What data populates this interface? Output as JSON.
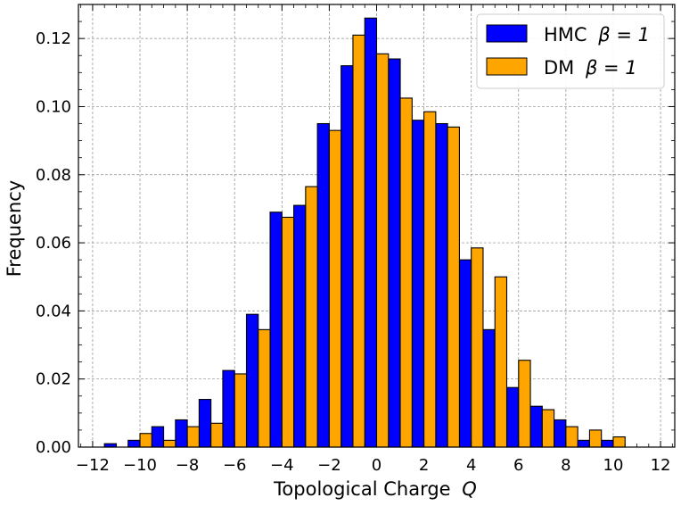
{
  "chart_data": {
    "type": "bar",
    "xlabel": "Topological Charge",
    "xlabel_var": "Q",
    "ylabel": "Frequency",
    "xlim": [
      -12.6,
      12.6
    ],
    "ylim": [
      0.0,
      0.13
    ],
    "xticks": [
      -12,
      -10,
      -8,
      -6,
      -4,
      -2,
      0,
      2,
      4,
      6,
      8,
      10,
      12
    ],
    "xtick_labels": [
      "−12",
      "−10",
      "−8",
      "−6",
      "−4",
      "−2",
      "0",
      "2",
      "4",
      "6",
      "8",
      "10",
      "12"
    ],
    "yticks": [
      0.0,
      0.02,
      0.04,
      0.06,
      0.08,
      0.1,
      0.12
    ],
    "ytick_labels": [
      "0.00",
      "0.02",
      "0.04",
      "0.06",
      "0.08",
      "0.10",
      "0.12"
    ],
    "grid": true,
    "legend_position": "top-right",
    "categories": [
      -11,
      -10,
      -9,
      -8,
      -7,
      -6,
      -5,
      -4,
      -3,
      -2,
      -1,
      0,
      1,
      2,
      3,
      4,
      5,
      6,
      7,
      8,
      9,
      10
    ],
    "series": [
      {
        "name": "HMC",
        "legend_suffix": "β = 1",
        "color": "#0000ff",
        "values": [
          0.001,
          0.002,
          0.006,
          0.008,
          0.014,
          0.0225,
          0.039,
          0.069,
          0.071,
          0.095,
          0.112,
          0.126,
          0.114,
          0.096,
          0.095,
          0.055,
          0.0345,
          0.0175,
          0.012,
          0.008,
          0.002,
          0.002
        ]
      },
      {
        "name": "DM",
        "legend_suffix": "β = 1",
        "color": "#ffa500",
        "values": [
          0.0,
          0.004,
          0.002,
          0.006,
          0.007,
          0.0215,
          0.0345,
          0.0675,
          0.0765,
          0.093,
          0.121,
          0.1155,
          0.1025,
          0.0985,
          0.094,
          0.0585,
          0.05,
          0.0255,
          0.011,
          0.006,
          0.005,
          0.003
        ]
      }
    ]
  }
}
